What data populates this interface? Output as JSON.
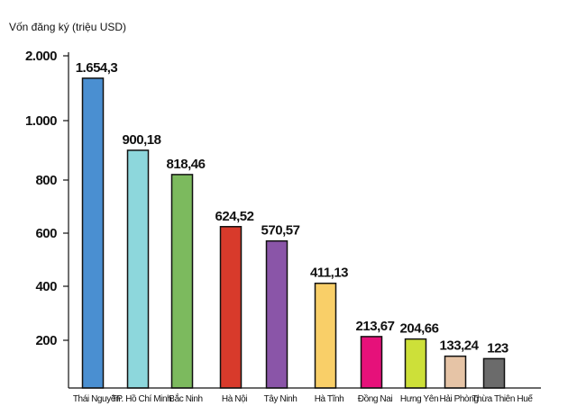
{
  "chart_data": {
    "type": "bar",
    "ylabel": "Vốn đăng ký (triệu USD)",
    "yticks": [
      "200",
      "400",
      "600",
      "800",
      "1.000",
      "2.000"
    ],
    "categories": [
      "Thái Nguyên",
      "TP. Hồ Chí Minh",
      "Bắc Ninh",
      "Hà Nội",
      "Tây Ninh",
      "Hà Tĩnh",
      "Đồng Nai",
      "Hưng Yên",
      "Hải Phòng",
      "Thừa Thiên Huế"
    ],
    "values": [
      1654.3,
      900.18,
      818.46,
      624.52,
      570.57,
      411.13,
      213.67,
      204.66,
      133.24,
      123
    ],
    "value_labels": [
      "1.654,3",
      "900,18",
      "818,46",
      "624,52",
      "570,57",
      "411,13",
      "213,67",
      "204,66",
      "133,24",
      "123"
    ],
    "colors": [
      "#4a8fd1",
      "#8dd7dc",
      "#7cba5e",
      "#d83a2b",
      "#8a55a8",
      "#f9cf68",
      "#e6117a",
      "#cde039",
      "#e6c4a6",
      "#6b6b6b"
    ],
    "grid": false,
    "legend": "none"
  }
}
